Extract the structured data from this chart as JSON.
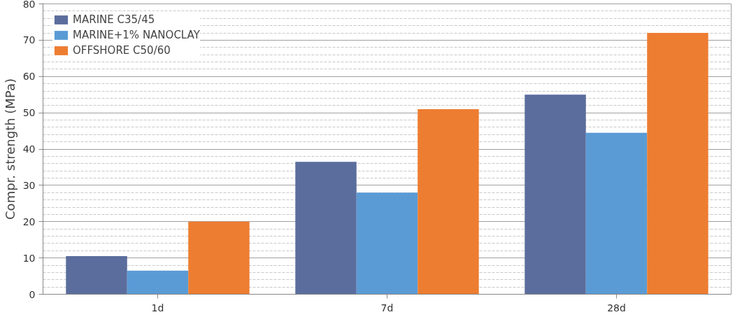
{
  "chart_data": {
    "type": "bar",
    "ylabel": "Compr. strength (MPa)",
    "categories": [
      "1d",
      "7d",
      "28d"
    ],
    "series": [
      {
        "name": "MARINE C35/45",
        "color": "#5b6d9c",
        "values": [
          10.5,
          36.5,
          55
        ]
      },
      {
        "name": "MARINE+1% NANOCLAY",
        "color": "#5b9bd5",
        "values": [
          6.5,
          28,
          44.5
        ]
      },
      {
        "name": "OFFSHORE C50/60",
        "color": "#ed7d31",
        "values": [
          20,
          51,
          72
        ]
      }
    ],
    "ylim": [
      0,
      80
    ],
    "yticks": [
      0,
      10,
      20,
      30,
      40,
      50,
      60,
      70,
      80
    ],
    "grid": "y",
    "legend": "top left"
  }
}
